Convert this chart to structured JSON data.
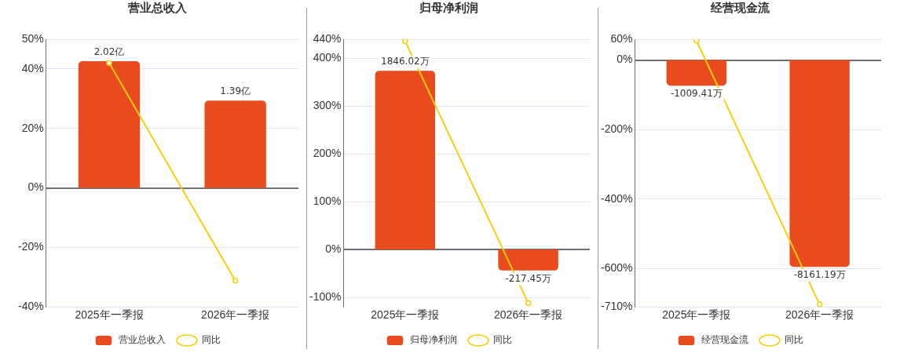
{
  "chart_data": [
    {
      "type": "bar",
      "title": "营业总收入",
      "categories": [
        "2025年一季报",
        "2026年一季报"
      ],
      "legend": "bottom",
      "grid": "y",
      "ylim": [
        -40,
        50
      ],
      "yticks": [
        {
          "value": -40,
          "label": "-40%"
        },
        {
          "value": -20,
          "label": "-20%"
        },
        {
          "value": 0,
          "label": "0%"
        },
        {
          "value": 20,
          "label": "20%"
        },
        {
          "value": 40,
          "label": "40%"
        },
        {
          "value": 50,
          "label": "50%"
        }
      ],
      "y2lim": [
        -1.9,
        2.37
      ],
      "series": [
        {
          "type": "bar",
          "name": "营业总收入",
          "color": "#e84c1e",
          "axis": "y2",
          "values": [
            2.02,
            1.39
          ],
          "value_labels": [
            "2.02亿",
            "1.39亿"
          ]
        },
        {
          "type": "line",
          "name": "同比",
          "color": "#f5cf0d",
          "marker": "circle",
          "values": [
            42,
            -31.2
          ]
        }
      ]
    },
    {
      "type": "bar",
      "title": "归母净利润",
      "categories": [
        "2025年一季报",
        "2026年一季报"
      ],
      "legend": "bottom",
      "grid": "y",
      "ylim": [
        -120,
        440
      ],
      "yticks": [
        {
          "value": -100,
          "label": "-100%"
        },
        {
          "value": 0,
          "label": "0%"
        },
        {
          "value": 100,
          "label": "100%"
        },
        {
          "value": 200,
          "label": "200%"
        },
        {
          "value": 300,
          "label": "300%"
        },
        {
          "value": 400,
          "label": "400%"
        },
        {
          "value": 440,
          "label": "440%"
        }
      ],
      "y2lim": [
        -593,
        2173
      ],
      "series": [
        {
          "type": "bar",
          "name": "归母净利润",
          "color": "#e84c1e",
          "axis": "y2",
          "values": [
            1846.02,
            -217.45
          ],
          "value_labels": [
            "1846.02万",
            "-217.45万"
          ]
        },
        {
          "type": "line",
          "name": "同比",
          "color": "#f5cf0d",
          "marker": "circle",
          "values": [
            436,
            -112
          ]
        }
      ]
    },
    {
      "type": "bar",
      "title": "经营现金流",
      "categories": [
        "2025年一季报",
        "2026年一季报"
      ],
      "legend": "bottom",
      "grid": "y",
      "ylim": [
        -710,
        60
      ],
      "yticks": [
        {
          "value": -710,
          "label": "-710%"
        },
        {
          "value": -600,
          "label": "-600%"
        },
        {
          "value": -400,
          "label": "-400%"
        },
        {
          "value": -200,
          "label": "-200%"
        },
        {
          "value": 0,
          "label": "0%"
        },
        {
          "value": 60,
          "label": "60%"
        }
      ],
      "y2lim": [
        -9741,
        823
      ],
      "series": [
        {
          "type": "bar",
          "name": "经营现金流",
          "color": "#e84c1e",
          "axis": "y2",
          "values": [
            -1009.41,
            -8161.19
          ],
          "value_labels": [
            "-1009.41万",
            "-8161.19万"
          ]
        },
        {
          "type": "line",
          "name": "同比",
          "color": "#f5cf0d",
          "marker": "circle",
          "values": [
            56,
            -703
          ]
        }
      ]
    }
  ]
}
